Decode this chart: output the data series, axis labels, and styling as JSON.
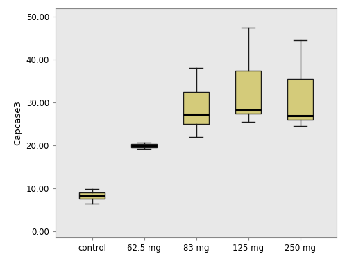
{
  "categories": [
    "control",
    "62.5 mg",
    "83 mg",
    "125 mg",
    "250 mg"
  ],
  "box_data": [
    {
      "whislo": 6.5,
      "q1": 7.5,
      "med": 8.2,
      "q3": 9.0,
      "whishi": 9.8
    },
    {
      "whislo": 19.2,
      "q1": 19.5,
      "med": 19.9,
      "q3": 20.3,
      "whishi": 20.6
    },
    {
      "whislo": 22.0,
      "q1": 25.0,
      "med": 27.3,
      "q3": 32.5,
      "whishi": 38.0
    },
    {
      "whislo": 25.5,
      "q1": 27.5,
      "med": 28.3,
      "q3": 37.5,
      "whishi": 47.5
    },
    {
      "whislo": 24.5,
      "q1": 26.0,
      "med": 27.0,
      "q3": 35.5,
      "whishi": 44.5
    }
  ],
  "ylim": [
    -1.5,
    52
  ],
  "yticks": [
    0.0,
    10.0,
    20.0,
    30.0,
    40.0,
    50.0
  ],
  "ytick_labels": [
    "0.00",
    "10.00",
    "20.00",
    "30.00",
    "40.00",
    "50.00"
  ],
  "ylabel": "Capcase3",
  "box_facecolor": "#d4cb7a",
  "box_edgecolor": "#1a1a1a",
  "median_color": "#000000",
  "whisker_color": "#1a1a1a",
  "cap_color": "#1a1a1a",
  "fig_background": "#ffffff",
  "plot_background": "#e8e8e8",
  "spine_color": "#888888",
  "box_width": 0.5,
  "linewidth": 1.0,
  "median_linewidth": 2.2
}
